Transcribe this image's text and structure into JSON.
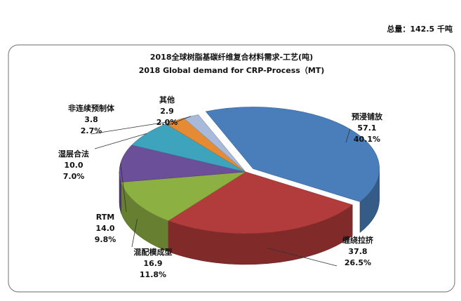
{
  "chart_data": {
    "type": "pie",
    "total_label": "总量：142.5 千吨",
    "title": "2018全球树脂基碳纤维复合材料需求-工艺(吨)",
    "subtitle": "2018 Global demand for CRP-Process（MT)",
    "categories": [
      "预浸铺放",
      "缠绕拉挤",
      "混配模成型",
      "RTM",
      "湿层合法",
      "非连续预制体",
      "其他"
    ],
    "values": [
      57.1,
      37.8,
      16.9,
      14,
      10,
      3.8,
      2.9
    ],
    "value_labels": [
      "57.1",
      "37.8",
      "16.9",
      "14.0",
      "10.0",
      "3.8",
      "2.9"
    ],
    "shares": [
      40.1,
      26.5,
      11.8,
      9.8,
      7,
      2.7,
      2
    ],
    "share_labels": [
      "40.1%",
      "26.5%",
      "11.8%",
      "9.8%",
      "7.0%",
      "2.7%",
      "2.0%"
    ],
    "colors": [
      "#4a7ebb",
      "#b23b3b",
      "#8db043",
      "#6b4f98",
      "#3ea3bd",
      "#e48b33",
      "#a9b9d9"
    ]
  }
}
